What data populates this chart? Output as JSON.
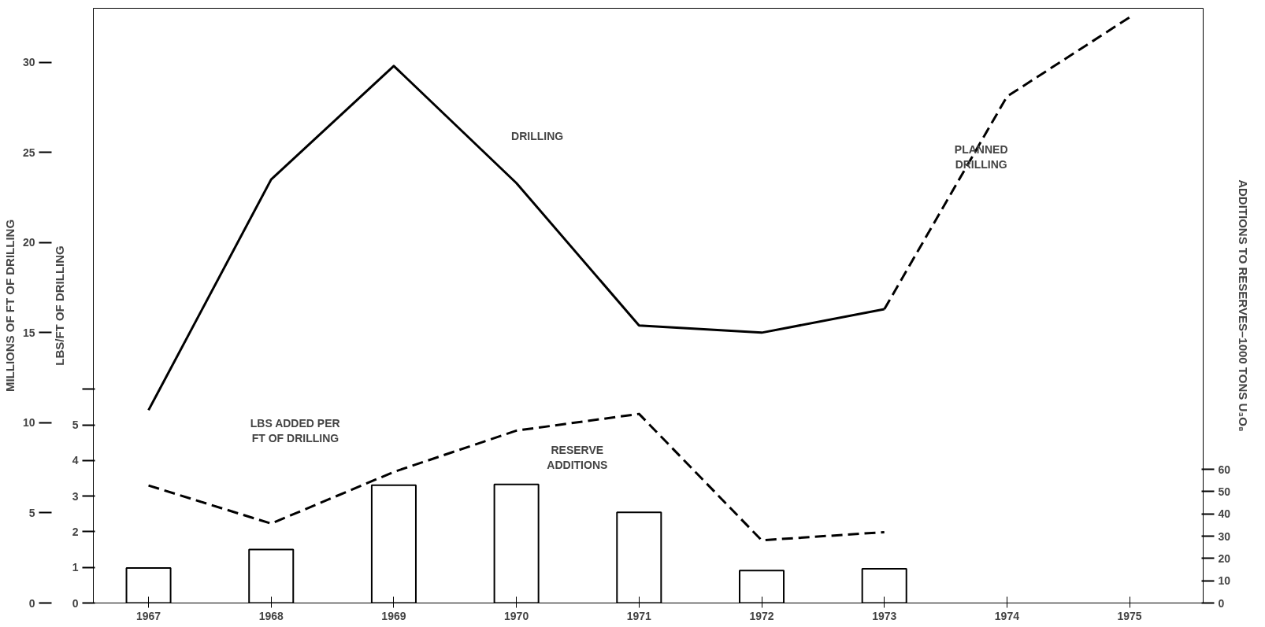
{
  "chart_data": {
    "type": "line",
    "xlabel": null,
    "ylabel": "MILLIONS OF FT OF DRILLING",
    "y2label": "LBS/FT OF DRILLING",
    "y3label": "ADDITIONS TO RESERVES–1000 TONS U₃O₈",
    "xlim": [
      1966.55,
      1975.6
    ],
    "xticks": [
      1967,
      1968,
      1969,
      1970,
      1971,
      1972,
      1973,
      1974,
      1975
    ],
    "ylim": [
      0,
      33
    ],
    "yticks": [
      0,
      5,
      10,
      15,
      20,
      25,
      30
    ],
    "y2lim": [
      0,
      16.7
    ],
    "y2ticks": [
      0,
      1,
      2,
      3,
      4,
      5,
      {
        "value": 6,
        "label": null
      }
    ],
    "y3lim": [
      0,
      267
    ],
    "y3ticks": [
      0,
      10,
      20,
      30,
      40,
      50,
      60
    ],
    "grid": false,
    "marker": "none",
    "series": [
      {
        "type": "bar",
        "axis": "y3",
        "color": "#ffffff",
        "x": [
          1967,
          1968,
          1969,
          1970,
          1971,
          1972,
          1973
        ],
        "values": [
          15.7,
          24,
          52.9,
          53.2,
          40.7,
          14.6,
          15.4
        ]
      },
      {
        "axis": "y",
        "color": "#000000",
        "line_style": "solid",
        "x": [
          1967,
          1968,
          1969,
          1970,
          1971,
          1972,
          1973
        ],
        "values": [
          10.7,
          23.5,
          29.8,
          23.3,
          15.4,
          15.0,
          16.3
        ]
      },
      {
        "axis": "y",
        "color": "#000000",
        "line_style": "dashed",
        "x": [
          1973,
          1974,
          1975
        ],
        "values": [
          16.3,
          28.1,
          32.5
        ]
      },
      {
        "axis": "y2",
        "color": "#000000",
        "line_style": "dashed",
        "x": [
          1967,
          1968,
          1969,
          1970,
          1971,
          1972,
          1973
        ],
        "values": [
          3.3,
          2.23,
          3.68,
          4.84,
          5.31,
          1.76,
          1.99
        ]
      }
    ],
    "annotations": [
      "DRILLING",
      "PLANNED\nDRILLING",
      "LBS ADDED PER\nFT OF DRILLING",
      "RESERVE\nADDITIONS"
    ]
  }
}
